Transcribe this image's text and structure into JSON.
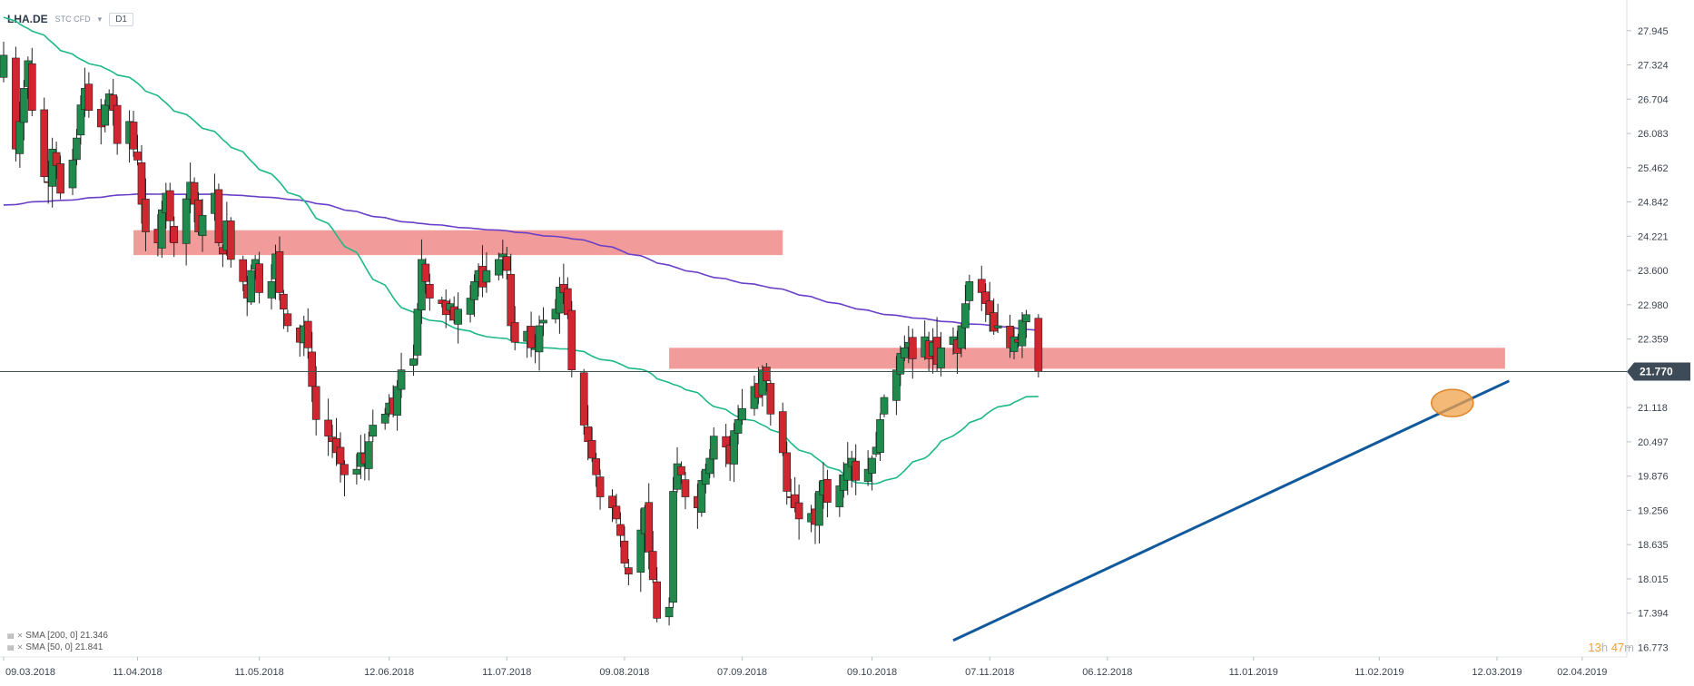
{
  "header": {
    "symbol": "LHA.DE",
    "instrument_type": "STC CFD",
    "timeframe": "D1"
  },
  "legend": {
    "sma200": "SMA [200, 0] 21.346",
    "sma50": "SMA [50, 0] 21.841"
  },
  "countdown": {
    "hours": "13",
    "h": "h",
    "minutes": "47",
    "m": "m"
  },
  "colors": {
    "up": "#1f8a4c",
    "down": "#d0262f",
    "sma50": "#1db985",
    "sma200": "#6a3fc8",
    "zone": "#f08a8a",
    "trendline": "#11599d",
    "circle": "#f2a24a",
    "price_line": "#3c5a50"
  },
  "chart_data": {
    "type": "candlestick",
    "y_ticks": [
      "27.945",
      "27.324",
      "26.704",
      "26.083",
      "25.462",
      "24.842",
      "24.221",
      "23.600",
      "22.980",
      "22.359",
      "21.118",
      "20.497",
      "19.876",
      "19.256",
      "18.635",
      "18.015",
      "17.394",
      "16.773"
    ],
    "x_ticks": [
      "09.03.2018",
      "11.04.2018",
      "11.05.2018",
      "12.06.2018",
      "11.07.2018",
      "09.08.2018",
      "07.09.2018",
      "09.10.2018",
      "07.11.2018",
      "06.12.2018",
      "11.01.2019",
      "11.02.2019",
      "12.03.2019",
      "02.04.2019"
    ],
    "current_price": "21.770",
    "ylim": [
      16.6,
      28.5
    ],
    "x_range": [
      "2018-03-09",
      "2019-04-13"
    ],
    "closes": [
      27.5,
      25.8,
      26.3,
      26.9,
      27.4,
      26.5,
      25.3,
      25.2,
      25.8,
      25.5,
      25.0,
      25.6,
      26.0,
      26.6,
      26.9,
      26.5,
      26.2,
      26.6,
      26.8,
      26.5,
      25.9,
      26.3,
      25.8,
      25.6,
      24.8,
      24.3,
      24.1,
      24.7,
      25.0,
      24.5,
      24.1,
      24.9,
      25.2,
      24.8,
      24.3,
      24.6,
      25.0,
      24.1,
      23.9,
      24.5,
      23.8,
      23.4,
      23.1,
      23.6,
      23.8,
      23.2,
      23.4,
      23.9,
      23.2,
      22.9,
      22.6,
      22.3,
      22.6,
      22.2,
      21.5,
      20.9,
      20.6,
      20.5,
      20.3,
      20.1,
      19.9,
      20.0,
      20.3,
      20.1,
      20.5,
      20.8,
      21.0,
      21.2,
      21.0,
      21.5,
      21.8,
      22.0,
      22.9,
      23.8,
      23.4,
      23.1,
      23.0,
      22.8,
      23.0,
      22.7,
      22.9,
      23.1,
      23.4,
      23.6,
      23.3,
      23.6,
      23.8,
      23.9,
      23.6,
      22.6,
      22.3,
      22.5,
      22.2,
      22.2,
      22.6,
      22.7,
      22.9,
      23.3,
      23.2,
      22.8,
      21.8,
      20.8,
      20.5,
      20.2,
      19.9,
      19.5,
      19.3,
      19.1,
      18.8,
      18.3,
      18.1,
      18.9,
      19.3,
      18.5,
      18.0,
      17.3,
      17.5,
      19.6,
      20.1,
      19.9,
      19.5,
      19.3,
      19.8,
      20.0,
      20.2,
      20.6,
      20.4,
      20.1,
      20.7,
      20.9,
      21.1,
      21.5,
      21.3,
      21.8,
      21.6,
      21.0,
      20.3,
      19.6,
      19.5,
      19.3,
      19.1,
      19.2,
      19.0,
      19.6,
      19.8,
      19.4,
      19.7,
      19.9,
      20.1,
      20.2,
      19.8,
      20.0,
      20.2,
      20.4,
      20.9,
      21.3,
      21.8,
      22.1,
      22.2,
      22.3,
      22.0,
      22.4,
      22.0,
      22.3,
      21.9,
      22.2,
      22.4,
      22.1,
      22.6,
      23.0,
      23.4,
      23.2,
      23.0,
      22.8,
      22.5,
      22.6,
      22.2,
      22.4,
      22.3,
      22.7,
      22.8,
      21.77
    ]
  }
}
